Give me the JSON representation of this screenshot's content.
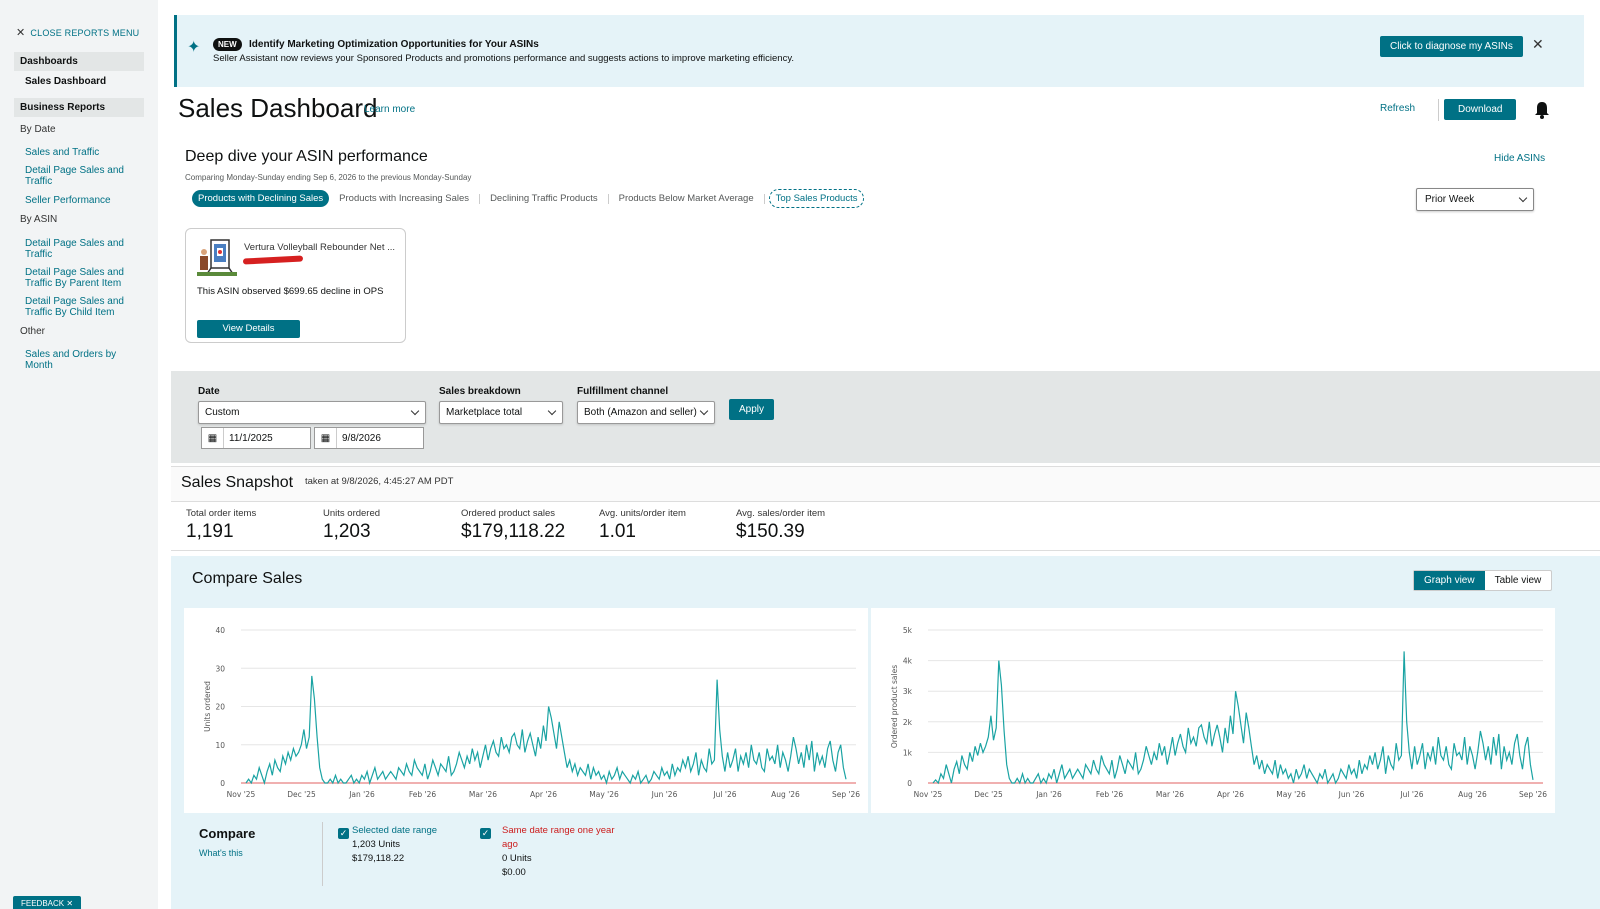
{
  "sidebar": {
    "close_label": "CLOSE REPORTS MENU",
    "dashboards_label": "Dashboards",
    "sales_dashboard_label": "Sales Dashboard",
    "business_reports_label": "Business Reports",
    "by_date_label": "By Date",
    "by_date_items": [
      "Sales and Traffic",
      "Detail Page Sales and Traffic",
      "Seller Performance"
    ],
    "by_asin_label": "By ASIN",
    "by_asin_items": [
      "Detail Page Sales and Traffic",
      "Detail Page Sales and Traffic By Parent Item",
      "Detail Page Sales and Traffic By Child Item"
    ],
    "other_label": "Other",
    "other_items": [
      "Sales and Orders by Month"
    ],
    "feedback_label": "FEEDBACK ✕"
  },
  "banner": {
    "badge": "NEW",
    "title": "Identify Marketing Optimization Opportunities for Your ASINs",
    "text": "Seller Assistant now reviews your Sponsored Products and promotions performance and suggests actions to improve marketing efficiency.",
    "button": "Click to diagnose my ASINs",
    "close": "✕"
  },
  "header": {
    "title": "Sales Dashboard",
    "learn_more": "Learn more",
    "refresh": "Refresh",
    "download": "Download"
  },
  "deep_dive": {
    "title": "Deep dive your ASIN performance",
    "note": "Comparing Monday-Sunday ending Sep 6, 2026 to the previous Monday-Sunday",
    "hide": "Hide ASINs",
    "tabs": [
      "Products with Declining Sales",
      "Products with Increasing Sales",
      "Declining Traffic Products",
      "Products Below Market Average",
      "Top Sales Products"
    ],
    "period": "Prior Week",
    "card": {
      "name": "Vertura Volleyball Rebounder Net ...",
      "message": "This ASIN observed $699.65 decline in OPS",
      "button": "View Details"
    }
  },
  "filters": {
    "date_label": "Date",
    "date_value": "Custom",
    "start_date": "11/1/2025",
    "end_date": "9/8/2026",
    "breakdown_label": "Sales breakdown",
    "breakdown_value": "Marketplace total",
    "channel_label": "Fulfillment channel",
    "channel_value": "Both (Amazon and seller)",
    "apply": "Apply"
  },
  "snapshot": {
    "title": "Sales Snapshot",
    "taken": "taken at 9/8/2026, 4:45:27 AM PDT",
    "metrics": [
      {
        "label": "Total order items",
        "value": "1,191"
      },
      {
        "label": "Units ordered",
        "value": "1,203"
      },
      {
        "label": "Ordered product sales",
        "value": "$179,118.22"
      },
      {
        "label": "Avg. units/order item",
        "value": "1.01"
      },
      {
        "label": "Avg. sales/order item",
        "value": "$150.39"
      }
    ]
  },
  "compare": {
    "title": "Compare Sales",
    "graph_view": "Graph view",
    "table_view": "Table view",
    "compare_label": "Compare",
    "whats_this": "What's this",
    "selected_label": "Selected date range",
    "selected_units": "1,203 Units",
    "selected_sales": "$179,118.22",
    "prior_label": "Same date range one year ago",
    "prior_units": "0 Units",
    "prior_sales": "$0.00"
  },
  "colors": {
    "accent": "#007185",
    "series": "#1aa3a3",
    "prior": "#e88080",
    "alert": "#cc1c1c"
  },
  "chart_data": [
    {
      "type": "line",
      "ylabel": "Units ordered",
      "ylim": [
        0,
        40
      ],
      "yticks": [
        "0",
        "10",
        "20",
        "30",
        "40"
      ],
      "xticks": [
        "Nov '25",
        "Dec '25",
        "Jan '26",
        "Feb '26",
        "Mar '26",
        "Apr '26",
        "May '26",
        "Jun '26",
        "Jul '26",
        "Aug '26",
        "Sep '26"
      ],
      "series": [
        {
          "values": [
            0,
            1,
            0,
            2,
            1,
            4,
            2,
            0,
            3,
            5,
            2,
            6,
            4,
            3,
            7,
            5,
            8,
            6,
            9,
            7,
            8,
            10,
            14,
            9,
            12,
            28,
            22,
            12,
            4,
            1,
            0,
            0,
            1,
            0,
            2,
            0,
            1,
            0,
            0,
            1,
            2,
            0,
            1,
            0,
            2,
            1,
            3,
            0,
            2,
            4,
            1,
            2,
            3,
            1,
            2,
            3,
            2,
            1,
            4,
            3,
            2,
            5,
            3,
            2,
            6,
            4,
            3,
            2,
            5,
            1,
            3,
            6,
            4,
            2,
            5,
            4,
            3,
            7,
            2,
            3,
            5,
            8,
            6,
            4,
            7,
            5,
            9,
            6,
            8,
            4,
            7,
            10,
            6,
            9,
            11,
            8,
            7,
            12,
            9,
            10,
            8,
            12,
            13,
            10,
            9,
            14,
            8,
            11,
            13,
            10,
            7,
            12,
            9,
            15,
            11,
            20,
            17,
            13,
            9,
            16,
            12,
            8,
            4,
            6,
            3,
            5,
            2,
            4,
            3,
            2,
            5,
            1,
            4,
            2,
            3,
            1,
            2,
            0,
            3,
            1,
            2,
            4,
            1,
            3,
            2,
            1,
            0,
            2,
            1,
            3,
            0,
            1,
            2,
            0,
            1,
            3,
            2,
            1,
            4,
            2,
            3,
            1,
            5,
            2,
            4,
            3,
            6,
            4,
            7,
            3,
            5,
            8,
            2,
            6,
            4,
            3,
            9,
            5,
            6,
            27,
            14,
            7,
            3,
            8,
            4,
            6,
            9,
            3,
            7,
            5,
            8,
            4,
            10,
            6,
            5,
            8,
            4,
            3,
            9,
            6,
            7,
            5,
            10,
            4,
            8,
            6,
            3,
            7,
            12,
            9,
            5,
            8,
            4,
            10,
            6,
            11,
            3,
            8,
            5,
            7,
            4,
            9,
            11,
            6,
            3,
            8,
            10,
            4,
            1
          ]
        },
        {
          "name": "prior",
          "values": [
            0,
            0
          ]
        }
      ]
    },
    {
      "type": "line",
      "ylabel": "Ordered product sales",
      "ylim": [
        0,
        5000
      ],
      "yticks": [
        "0",
        "1k",
        "2k",
        "3k",
        "4k",
        "5k"
      ],
      "xticks": [
        "Nov '25",
        "Dec '25",
        "Jan '26",
        "Feb '26",
        "Mar '26",
        "Apr '26",
        "May '26",
        "Jun '26",
        "Jul '26",
        "Aug '26",
        "Sep '26"
      ],
      "series": [
        {
          "values": [
            0,
            100,
            0,
            300,
            150,
            600,
            300,
            0,
            450,
            700,
            300,
            900,
            600,
            450,
            1000,
            700,
            1200,
            900,
            1300,
            1000,
            1200,
            1500,
            2200,
            1400,
            1800,
            4000,
            3200,
            1700,
            600,
            150,
            0,
            0,
            150,
            0,
            300,
            0,
            150,
            0,
            0,
            150,
            300,
            0,
            150,
            0,
            300,
            150,
            450,
            0,
            300,
            600,
            150,
            300,
            450,
            150,
            300,
            450,
            300,
            150,
            600,
            450,
            300,
            750,
            450,
            300,
            900,
            600,
            450,
            300,
            750,
            150,
            450,
            900,
            600,
            300,
            750,
            600,
            450,
            1000,
            300,
            450,
            750,
            1200,
            900,
            600,
            1000,
            750,
            1300,
            900,
            1200,
            600,
            1000,
            1500,
            900,
            1300,
            1600,
            1200,
            1000,
            1800,
            1300,
            1500,
            1200,
            1800,
            1900,
            1500,
            1300,
            2000,
            1200,
            1600,
            1900,
            1500,
            1000,
            1800,
            1300,
            2200,
            1600,
            3000,
            2500,
            1900,
            1300,
            2300,
            1800,
            1200,
            600,
            900,
            450,
            750,
            300,
            600,
            450,
            300,
            750,
            150,
            600,
            300,
            450,
            150,
            300,
            0,
            450,
            150,
            300,
            600,
            150,
            450,
            300,
            150,
            0,
            300,
            150,
            450,
            0,
            150,
            300,
            0,
            150,
            450,
            300,
            150,
            600,
            300,
            450,
            150,
            750,
            300,
            600,
            450,
            900,
            600,
            1000,
            450,
            750,
            1200,
            300,
            900,
            600,
            450,
            1300,
            750,
            900,
            4300,
            2000,
            1000,
            450,
            1200,
            600,
            900,
            1300,
            450,
            1000,
            750,
            1200,
            600,
            1500,
            900,
            750,
            1200,
            600,
            450,
            1300,
            900,
            1000,
            750,
            1500,
            600,
            1200,
            900,
            450,
            1000,
            1700,
            1300,
            750,
            1200,
            600,
            1500,
            900,
            1600,
            450,
            1200,
            750,
            1000,
            600,
            1300,
            1600,
            900,
            450,
            1200,
            1500,
            600,
            100
          ]
        },
        {
          "name": "prior",
          "values": [
            0,
            0
          ]
        }
      ]
    }
  ]
}
